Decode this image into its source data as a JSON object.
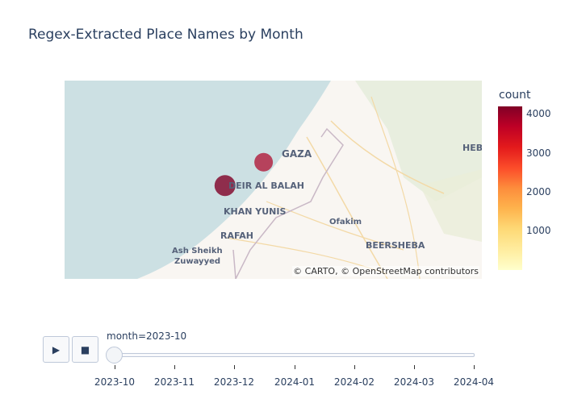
{
  "title": "Regex-Extracted Place Names by Month",
  "map": {
    "attribution": "© CARTO, © OpenStreetMap contributors",
    "sea_color": "#cce0e3",
    "land_color": "#f9f6f2",
    "place_labels": [
      "GAZA",
      "DEIR AL BALAH",
      "KHAN YUNIS",
      "RAFAH",
      "Ash Sheikh",
      "Zuwayyed",
      "Ofakim",
      "BEERSHEBA",
      "HEB"
    ],
    "points": [
      {
        "place": "GAZA",
        "lat": 31.5,
        "lon": 34.47,
        "count": 2900,
        "color": "#b01a3a"
      },
      {
        "place": "DEIR AL BALAH",
        "lat": 31.42,
        "lon": 34.35,
        "count": 4200,
        "color": "#800026"
      }
    ]
  },
  "colorbar": {
    "title": "count",
    "ticks": [
      "1000",
      "2000",
      "3000",
      "4000"
    ],
    "max": 4200
  },
  "controls": {
    "play_icon": "play-icon",
    "stop_icon": "stop-icon",
    "current_label": "month=2023-10",
    "months": [
      "2023-10",
      "2023-11",
      "2023-12",
      "2024-01",
      "2024-02",
      "2024-03",
      "2024-04"
    ]
  }
}
